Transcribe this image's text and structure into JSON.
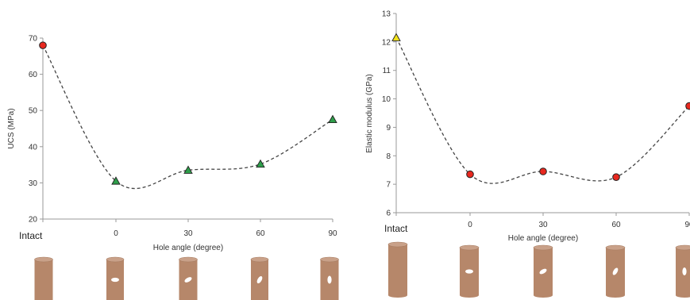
{
  "chart_data": [
    {
      "type": "line",
      "intact_label": "Intact",
      "categories": [
        "Intact",
        "0",
        "30",
        "60",
        "90"
      ],
      "values": [
        68,
        30.5,
        33.5,
        35.2,
        47.5
      ],
      "markers": [
        "circle",
        "triangle",
        "triangle",
        "triangle",
        "triangle"
      ],
      "marker_colors": [
        "#e8281f",
        "#2e9e4a",
        "#2e9e4a",
        "#2e9e4a",
        "#2e9e4a"
      ],
      "xlabel": "Hole angle (degree)",
      "ylabel": "UCS (MPa)",
      "ylim": [
        20,
        70
      ],
      "yticks": [
        "20",
        "30",
        "40",
        "50",
        "60",
        "70"
      ],
      "grid": false,
      "line_style": "dashed smooth",
      "specimen_hole_angles": [
        null,
        0,
        30,
        60,
        90
      ]
    },
    {
      "type": "line",
      "intact_label": "Intact",
      "categories": [
        "Intact",
        "0",
        "30",
        "60",
        "90"
      ],
      "values": [
        12.15,
        7.35,
        7.45,
        7.25,
        9.75
      ],
      "markers": [
        "triangle",
        "circle",
        "circle",
        "circle",
        "circle"
      ],
      "marker_colors": [
        "#f2e21a",
        "#e8281f",
        "#e8281f",
        "#e8281f",
        "#e8281f"
      ],
      "xlabel": "Hole angle (degree)",
      "ylabel": "Elastic modulus (GPa)",
      "ylim": [
        6,
        13
      ],
      "yticks": [
        "6",
        "7",
        "8",
        "9",
        "10",
        "11",
        "12",
        "13"
      ],
      "grid": false,
      "line_style": "dashed smooth",
      "specimen_hole_angles": [
        null,
        0,
        30,
        60,
        90
      ]
    }
  ]
}
